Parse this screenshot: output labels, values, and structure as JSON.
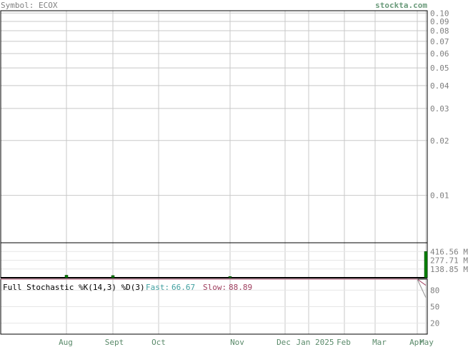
{
  "header": {
    "symbol": "Symbol: ECOX",
    "site": "stockta.com"
  },
  "colors": {
    "text_gray": "#808080",
    "site_green": "#6a9a7a",
    "grid": "#c8c8c8",
    "volume_bar": "#008000",
    "fast_teal": "#40a0a0",
    "slow_maroon": "#a04060",
    "axis_label_green": "#5a8a6a"
  },
  "chart_data": [
    {
      "type": "line",
      "panel": "price",
      "yscale": "log",
      "ylim": [
        0.0055,
        0.103
      ],
      "y_ticks": [
        {
          "value": 0.1,
          "label": "0.10"
        },
        {
          "value": 0.09,
          "label": "0.09"
        },
        {
          "value": 0.08,
          "label": "0.08"
        },
        {
          "value": 0.07,
          "label": "0.07"
        },
        {
          "value": 0.06,
          "label": "0.06"
        },
        {
          "value": 0.05,
          "label": "0.05"
        },
        {
          "value": 0.04,
          "label": "0.04"
        },
        {
          "value": 0.03,
          "label": "0.03"
        },
        {
          "value": 0.02,
          "label": "0.02"
        },
        {
          "value": 0.01,
          "label": "0.01"
        }
      ],
      "x_ticks": [
        "Aug",
        "Sept",
        "Oct",
        "Nov",
        "Dec",
        "Jan 2025",
        "Feb",
        "Mar",
        "Apr",
        "May"
      ],
      "grid": true,
      "series": []
    },
    {
      "type": "bar",
      "panel": "volume",
      "ylim": [
        0,
        555.42
      ],
      "y_ticks": [
        {
          "value": 416.56,
          "label": "416.56 M"
        },
        {
          "value": 277.71,
          "label": "277.71 M"
        },
        {
          "value": 138.85,
          "label": "138.85 M"
        }
      ],
      "bars": [
        {
          "x": "Aug",
          "value": 40
        },
        {
          "x": "Sept",
          "value": 35
        },
        {
          "x": "Nov",
          "value": 20
        },
        {
          "x": "May",
          "value": 416.56
        }
      ]
    },
    {
      "type": "line",
      "panel": "stochastic",
      "title": "Full Stochastic %K(14,3) %D(3)",
      "fast_label": "Fast:",
      "fast_value": "66.67",
      "slow_label": "Slow:",
      "slow_value": "88.89",
      "ylim": [
        0,
        100
      ],
      "y_ticks": [
        {
          "value": 80,
          "label": "80"
        },
        {
          "value": 50,
          "label": "50"
        },
        {
          "value": 20,
          "label": "20"
        }
      ],
      "series": [
        {
          "points": [
            [
              "Aug",
              100
            ],
            [
              "Apr",
              100
            ],
            [
              "May",
              88.89
            ]
          ]
        },
        {
          "points": [
            [
              "Apr",
              100
            ],
            [
              "May",
              66.67
            ]
          ]
        }
      ]
    }
  ]
}
